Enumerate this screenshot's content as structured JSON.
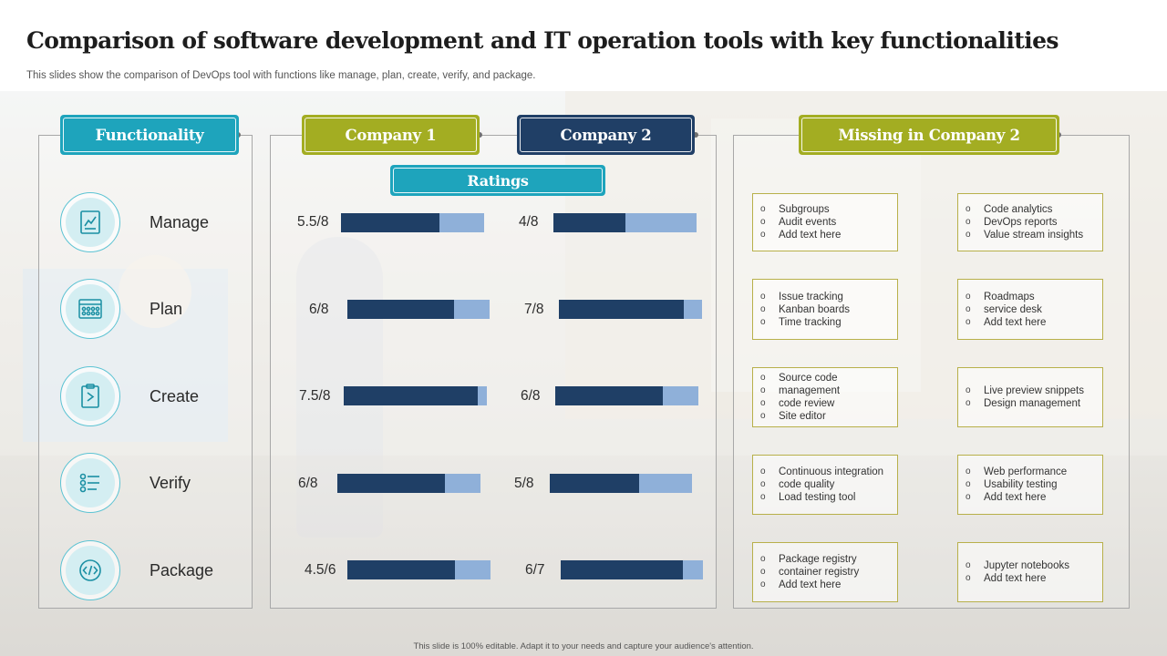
{
  "title": "Comparison of software development and IT operation tools with key functionalities",
  "subtitle": "This slides show the comparison of DevOps tool with functions like manage, plan, create, verify,  and package.",
  "headers": {
    "functionality": "Functionality",
    "company1": "Company 1",
    "company2": "Company 2",
    "ratings": "Ratings",
    "missing": "Missing in Company 2"
  },
  "rows": [
    {
      "label": "Manage",
      "icon": "chart-icon",
      "c1": {
        "text": "5.5/8",
        "fraction": 0.6875
      },
      "c2": {
        "text": "4/8",
        "fraction": 0.5
      },
      "missing_left": [
        "Subgroups",
        "Audit events",
        "Add text here"
      ],
      "missing_right": [
        "Code analytics",
        "DevOps reports",
        "Value stream insights"
      ]
    },
    {
      "label": "Plan",
      "icon": "kanban-board-icon",
      "c1": {
        "text": "6/8",
        "fraction": 0.75
      },
      "c2": {
        "text": "7/8",
        "fraction": 0.875
      },
      "missing_left": [
        "Issue tracking",
        "Kanban boards",
        "Time tracking"
      ],
      "missing_right": [
        "Roadmaps",
        "service desk",
        "Add text here"
      ]
    },
    {
      "label": "Create",
      "icon": "document-icon",
      "c1": {
        "text": "7.5/8",
        "fraction": 0.9375
      },
      "c2": {
        "text": "6/8",
        "fraction": 0.75
      },
      "missing_left": [
        "Source code",
        "management",
        "code review",
        "Site editor"
      ],
      "missing_right": [
        "Live preview snippets",
        "Design management"
      ]
    },
    {
      "label": "Verify",
      "icon": "checklist-icon",
      "c1": {
        "text": "6/8",
        "fraction": 0.75
      },
      "c2": {
        "text": "5/8",
        "fraction": 0.625
      },
      "missing_left": [
        "Continuous integration",
        "code quality",
        "Load testing tool"
      ],
      "missing_right": [
        "Web performance",
        "Usability testing",
        "Add text here"
      ]
    },
    {
      "label": "Package",
      "icon": "code-icon",
      "c1": {
        "text": "4.5/6",
        "fraction": 0.75
      },
      "c2": {
        "text": "6/7",
        "fraction": 0.857
      },
      "missing_left": [
        "Package registry",
        "container registry",
        "Add text here"
      ],
      "missing_right": [
        "Jupyter notebooks",
        "Add text here"
      ]
    }
  ],
  "footer": "This slide is 100% editable.  Adapt it to your needs and capture your audience's attention.",
  "colors": {
    "teal": "#1ea4bc",
    "olive": "#a3ad22",
    "navy": "#203f66",
    "bar_light": "#8fb0d9",
    "bar_dark": "#1f3f66"
  }
}
